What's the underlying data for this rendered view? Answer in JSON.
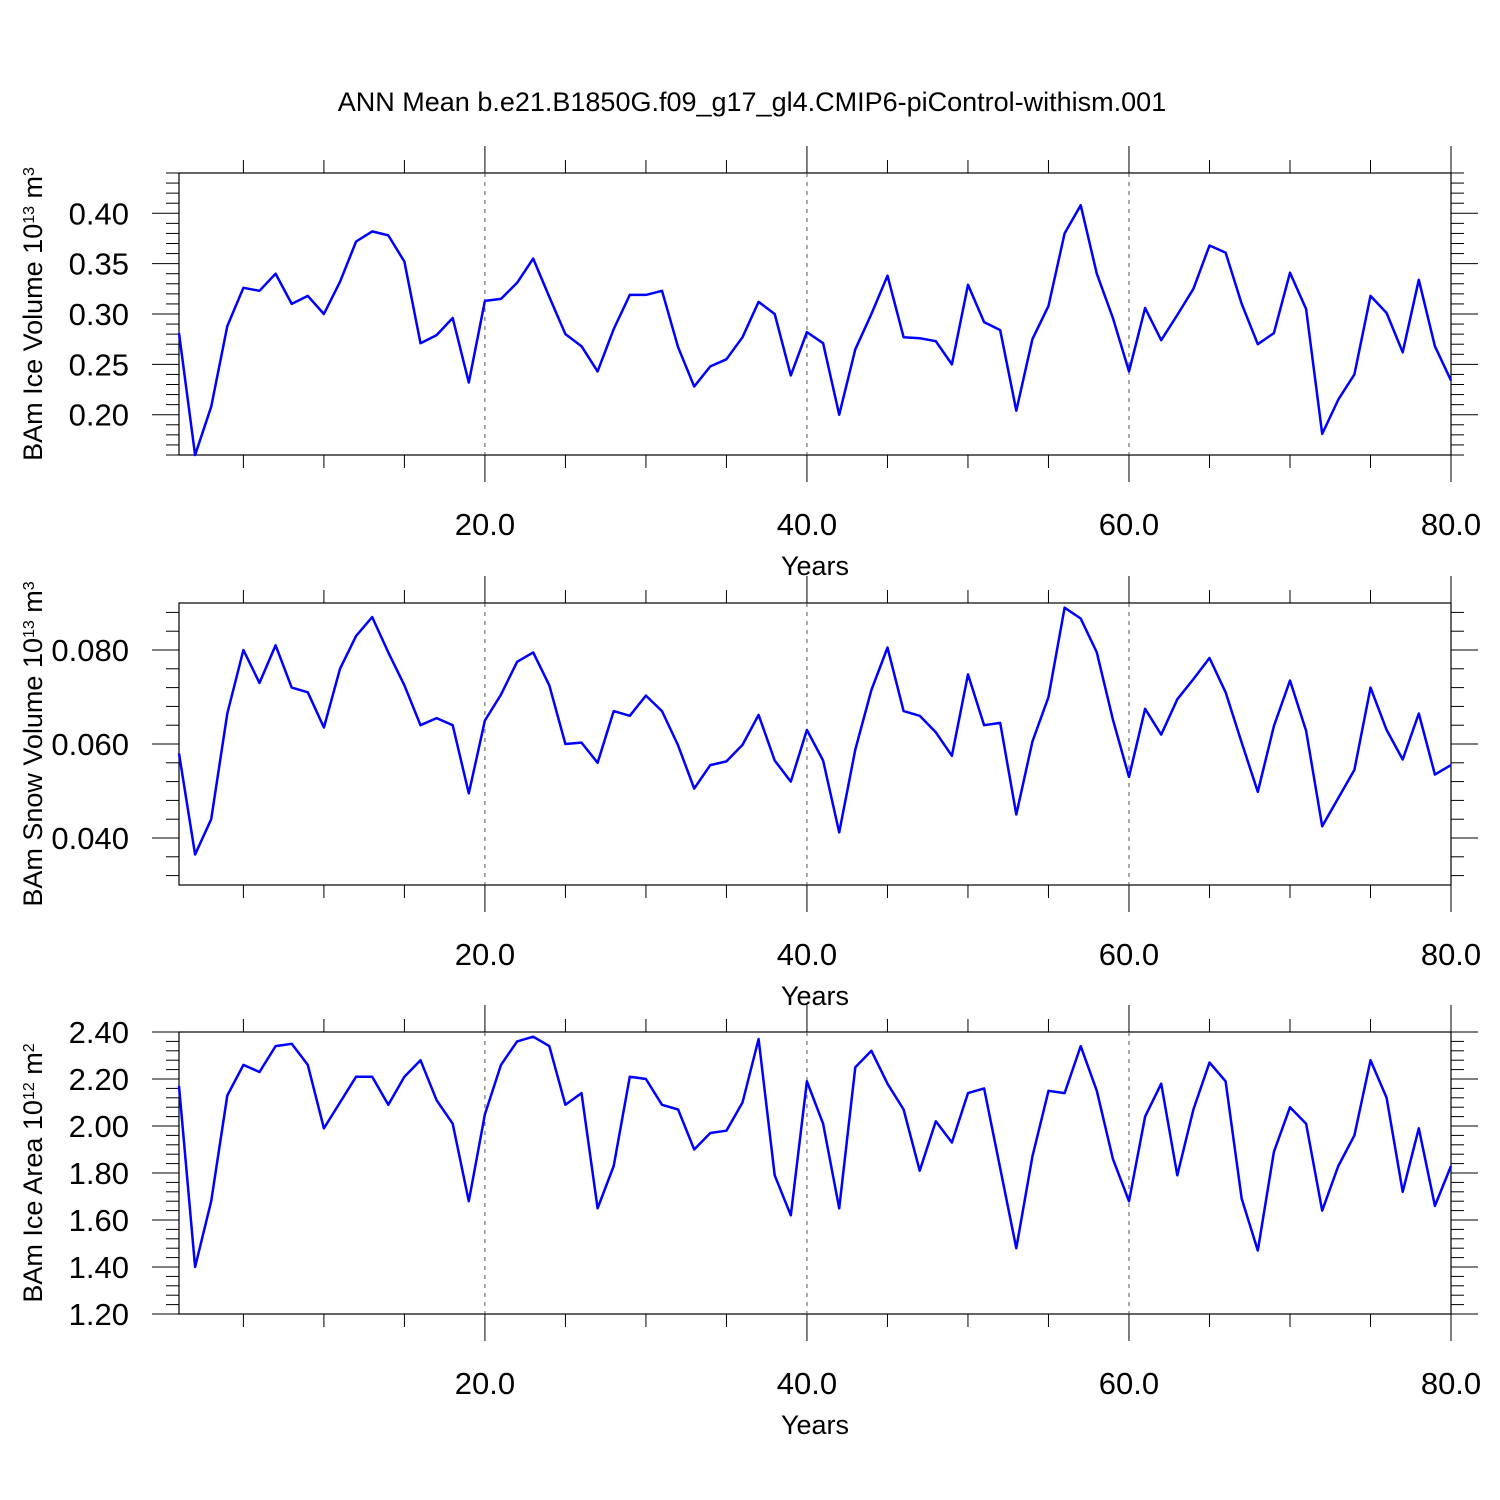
{
  "figure": {
    "title": "ANN Mean b.e21.B1850G.f09_g17_gl4.CMIP6-piControl-withism.001",
    "line_color": "#0000ff"
  },
  "chart_data": [
    {
      "type": "line",
      "ylabel": {
        "text": "BAm Ice Volume 10",
        "exp": "13",
        "unit": " m",
        "unit_exp": "3"
      },
      "xlabel": "Years",
      "xlim": [
        1,
        80
      ],
      "ylim": [
        0.16,
        0.44
      ],
      "x_ticks": [
        "20.0",
        "40.0",
        "60.0",
        "80.0"
      ],
      "y_ticks": [
        "0.20",
        "0.25",
        "0.30",
        "0.35",
        "0.40"
      ],
      "grid": "vertical dashed at 20, 40, 60",
      "series": [
        {
          "x": [
            1,
            2,
            3,
            4,
            5,
            6,
            7,
            8,
            9,
            10,
            11,
            12,
            13,
            14,
            15,
            16,
            17,
            18,
            19,
            20,
            21,
            22,
            23,
            24,
            25,
            26,
            27,
            28,
            29,
            30,
            31,
            32,
            33,
            34,
            35,
            36,
            37,
            38,
            39,
            40,
            41,
            42,
            43,
            44,
            45,
            46,
            47,
            48,
            49,
            50,
            51,
            52,
            53,
            54,
            55,
            56,
            57,
            58,
            59,
            60,
            61,
            62,
            63,
            64,
            65,
            66,
            67,
            68,
            69,
            70,
            71,
            72,
            73,
            74,
            75,
            76,
            77,
            78,
            79,
            80
          ],
          "values": [
            0.281,
            0.16,
            0.208,
            0.288,
            0.326,
            0.323,
            0.34,
            0.31,
            0.318,
            0.3,
            0.332,
            0.372,
            0.382,
            0.378,
            0.352,
            0.271,
            0.279,
            0.296,
            0.232,
            0.313,
            0.315,
            0.331,
            0.355,
            0.317,
            0.28,
            0.268,
            0.243,
            0.285,
            0.319,
            0.319,
            0.323,
            0.267,
            0.228,
            0.248,
            0.255,
            0.277,
            0.312,
            0.3,
            0.239,
            0.282,
            0.271,
            0.2,
            0.265,
            0.3,
            0.338,
            0.277,
            0.276,
            0.273,
            0.25,
            0.329,
            0.292,
            0.284,
            0.204,
            0.275,
            0.308,
            0.38,
            0.408,
            0.34,
            0.296,
            0.243,
            0.306,
            0.274,
            0.299,
            0.325,
            0.368,
            0.361,
            0.31,
            0.27,
            0.281,
            0.341,
            0.305,
            0.181,
            0.215,
            0.24,
            0.318,
            0.301,
            0.262,
            0.334,
            0.268,
            0.234
          ]
        }
      ]
    },
    {
      "type": "line",
      "ylabel": {
        "text": "BAm Snow Volume 10",
        "exp": "13",
        "unit": " m",
        "unit_exp": "3"
      },
      "xlabel": "Years",
      "xlim": [
        1,
        80
      ],
      "ylim": [
        0.03,
        0.09
      ],
      "x_ticks": [
        "20.0",
        "40.0",
        "60.0",
        "80.0"
      ],
      "y_ticks": [
        "0.040",
        "0.060",
        "0.080"
      ],
      "grid": "vertical dashed at 20, 40, 60",
      "series": [
        {
          "x": [
            1,
            2,
            3,
            4,
            5,
            6,
            7,
            8,
            9,
            10,
            11,
            12,
            13,
            14,
            15,
            16,
            17,
            18,
            19,
            20,
            21,
            22,
            23,
            24,
            25,
            26,
            27,
            28,
            29,
            30,
            31,
            32,
            33,
            34,
            35,
            36,
            37,
            38,
            39,
            40,
            41,
            42,
            43,
            44,
            45,
            46,
            47,
            48,
            49,
            50,
            51,
            52,
            53,
            54,
            55,
            56,
            57,
            58,
            59,
            60,
            61,
            62,
            63,
            64,
            65,
            66,
            67,
            68,
            69,
            70,
            71,
            72,
            73,
            74,
            75,
            76,
            77,
            78,
            79,
            80
          ],
          "values": [
            0.058,
            0.0365,
            0.044,
            0.0665,
            0.08,
            0.073,
            0.081,
            0.072,
            0.071,
            0.0635,
            0.076,
            0.083,
            0.087,
            0.0795,
            0.0725,
            0.064,
            0.0655,
            0.064,
            0.0495,
            0.065,
            0.0705,
            0.0775,
            0.0795,
            0.0725,
            0.06,
            0.0603,
            0.056,
            0.067,
            0.066,
            0.0703,
            0.067,
            0.0597,
            0.0505,
            0.0555,
            0.0563,
            0.0598,
            0.0662,
            0.0565,
            0.052,
            0.063,
            0.0565,
            0.0412,
            0.0588,
            0.0715,
            0.0805,
            0.067,
            0.066,
            0.0625,
            0.0575,
            0.0748,
            0.064,
            0.0645,
            0.045,
            0.0605,
            0.07,
            0.089,
            0.0867,
            0.0795,
            0.0652,
            0.053,
            0.0675,
            0.062,
            0.0695,
            0.0738,
            0.0783,
            0.071,
            0.0603,
            0.0498,
            0.0638,
            0.0735,
            0.0628,
            0.0425,
            0.0485,
            0.0545,
            0.072,
            0.063,
            0.0567,
            0.0665,
            0.0535,
            0.0555
          ]
        }
      ]
    },
    {
      "type": "line",
      "ylabel": {
        "text": "BAm Ice Area 10",
        "exp": "12",
        "unit": " m",
        "unit_exp": "2"
      },
      "xlabel": "Years",
      "xlim": [
        1,
        80
      ],
      "ylim": [
        1.2,
        2.4
      ],
      "x_ticks": [
        "20.0",
        "40.0",
        "60.0",
        "80.0"
      ],
      "y_ticks": [
        "1.20",
        "1.40",
        "1.60",
        "1.80",
        "2.00",
        "2.20",
        "2.40"
      ],
      "grid": "vertical dashed at 20, 40, 60",
      "series": [
        {
          "x": [
            1,
            2,
            3,
            4,
            5,
            6,
            7,
            8,
            9,
            10,
            11,
            12,
            13,
            14,
            15,
            16,
            17,
            18,
            19,
            20,
            21,
            22,
            23,
            24,
            25,
            26,
            27,
            28,
            29,
            30,
            31,
            32,
            33,
            34,
            35,
            36,
            37,
            38,
            39,
            40,
            41,
            42,
            43,
            44,
            45,
            46,
            47,
            48,
            49,
            50,
            51,
            52,
            53,
            54,
            55,
            56,
            57,
            58,
            59,
            60,
            61,
            62,
            63,
            64,
            65,
            66,
            67,
            68,
            69,
            70,
            71,
            72,
            73,
            74,
            75,
            76,
            77,
            78,
            79,
            80
          ],
          "values": [
            2.17,
            1.4,
            1.68,
            2.13,
            2.26,
            2.23,
            2.34,
            2.35,
            2.26,
            1.99,
            2.1,
            2.21,
            2.21,
            2.09,
            2.21,
            2.28,
            2.11,
            2.01,
            1.68,
            2.05,
            2.26,
            2.36,
            2.38,
            2.34,
            2.09,
            2.14,
            1.65,
            1.83,
            2.21,
            2.2,
            2.09,
            2.07,
            1.9,
            1.97,
            1.98,
            2.1,
            2.37,
            1.79,
            1.62,
            2.19,
            2.01,
            1.65,
            2.25,
            2.32,
            2.18,
            2.07,
            1.81,
            2.02,
            1.93,
            2.14,
            2.16,
            1.82,
            1.48,
            1.87,
            2.15,
            2.14,
            2.34,
            2.15,
            1.86,
            1.68,
            2.04,
            2.18,
            1.79,
            2.07,
            2.27,
            2.19,
            1.69,
            1.47,
            1.89,
            2.08,
            2.01,
            1.64,
            1.83,
            1.96,
            2.28,
            2.12,
            1.72,
            1.99,
            1.66,
            1.83
          ]
        }
      ]
    }
  ]
}
